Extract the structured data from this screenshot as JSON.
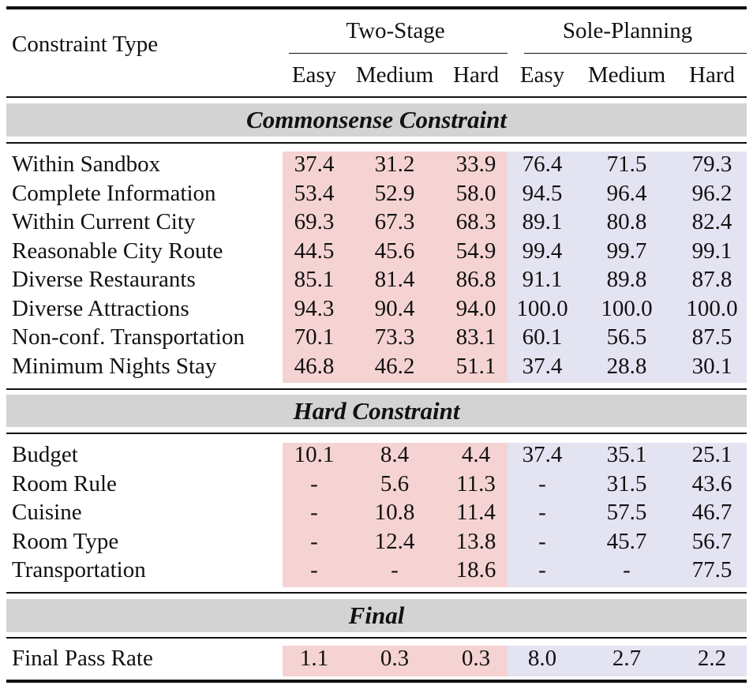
{
  "header": {
    "constraint_type": "Constraint Type",
    "groups": [
      "Two-Stage",
      "Sole-Planning"
    ],
    "levels": [
      "Easy",
      "Medium",
      "Hard",
      "Easy",
      "Medium",
      "Hard"
    ]
  },
  "sections": [
    {
      "title": "Commonsense Constraint",
      "rows": [
        {
          "label": "Within Sandbox",
          "values": [
            "37.4",
            "31.2",
            "33.9",
            "76.4",
            "71.5",
            "79.3"
          ]
        },
        {
          "label": "Complete Information",
          "values": [
            "53.4",
            "52.9",
            "58.0",
            "94.5",
            "96.4",
            "96.2"
          ]
        },
        {
          "label": "Within Current City",
          "values": [
            "69.3",
            "67.3",
            "68.3",
            "89.1",
            "80.8",
            "82.4"
          ]
        },
        {
          "label": "Reasonable City Route",
          "values": [
            "44.5",
            "45.6",
            "54.9",
            "99.4",
            "99.7",
            "99.1"
          ]
        },
        {
          "label": "Diverse Restaurants",
          "values": [
            "85.1",
            "81.4",
            "86.8",
            "91.1",
            "89.8",
            "87.8"
          ]
        },
        {
          "label": "Diverse Attractions",
          "values": [
            "94.3",
            "90.4",
            "94.0",
            "100.0",
            "100.0",
            "100.0"
          ]
        },
        {
          "label": "Non-conf. Transportation",
          "values": [
            "70.1",
            "73.3",
            "83.1",
            "60.1",
            "56.5",
            "87.5"
          ]
        },
        {
          "label": "Minimum Nights Stay",
          "values": [
            "46.8",
            "46.2",
            "51.1",
            "37.4",
            "28.8",
            "30.1"
          ]
        }
      ]
    },
    {
      "title": "Hard Constraint",
      "rows": [
        {
          "label": "Budget",
          "values": [
            "10.1",
            "8.4",
            "4.4",
            "37.4",
            "35.1",
            "25.1"
          ]
        },
        {
          "label": "Room Rule",
          "values": [
            "-",
            "5.6",
            "11.3",
            "-",
            "31.5",
            "43.6"
          ]
        },
        {
          "label": "Cuisine",
          "values": [
            "-",
            "10.8",
            "11.4",
            "-",
            "57.5",
            "46.7"
          ]
        },
        {
          "label": "Room Type",
          "values": [
            "-",
            "12.4",
            "13.8",
            "-",
            "45.7",
            "56.7"
          ]
        },
        {
          "label": "Transportation",
          "values": [
            "-",
            "-",
            "18.6",
            "-",
            "-",
            "77.5"
          ]
        }
      ]
    },
    {
      "title": "Final",
      "rows": [
        {
          "label": "Final Pass Rate",
          "values": [
            "1.1",
            "0.3",
            "0.3",
            "8.0",
            "2.7",
            "2.2"
          ]
        }
      ]
    }
  ],
  "colors": {
    "two_stage_bg": "#f6d3d3",
    "sole_planning_bg": "#e3e3f2",
    "section_band": "#d3d3d3"
  }
}
